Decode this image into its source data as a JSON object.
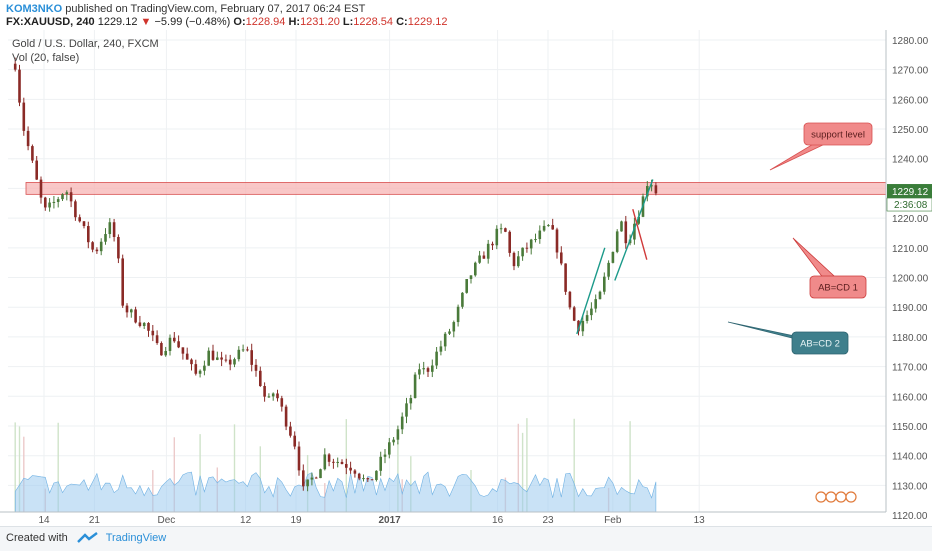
{
  "header": {
    "author": "KOM3NKO",
    "published_text": "published on TradingView.com, February 07, 2017 06:24 EST",
    "symbol": "FX:XAUUSD, 240",
    "last": "1229.12",
    "change_arrow": "▼",
    "change": "−5.99 (−0.48%)",
    "o_label": "O:",
    "o_value": "1228.94",
    "h_label": "H:",
    "h_value": "1231.20",
    "l_label": "L:",
    "l_value": "1228.54",
    "c_label": "C:",
    "c_value": "1229.12"
  },
  "legend": {
    "series_title": "Gold / U.S. Dollar, 240, FXCM",
    "volume_title": "Vol (20, false)"
  },
  "footer": {
    "created_with": "Created with",
    "brand": "TradingView"
  },
  "colors": {
    "up_candle": "#4a7a3a",
    "down_candle": "#8a2a26",
    "volume_area": "#9ccbee",
    "zone_fill": "#f7b4b4",
    "zone_stroke": "#d85050",
    "callout_red": "#f08a8a",
    "callout_teal": "#3f7f8c",
    "price_badge": "#3a7d3a",
    "link_blue": "#2a8fd8"
  },
  "chart_data": {
    "type": "candlestick",
    "title": "Gold / U.S. Dollar, 240, FXCM",
    "ylim": [
      1117,
      1282
    ],
    "y_ticks": [
      "1120.00",
      "1130.00",
      "1140.00",
      "1150.00",
      "1160.00",
      "1170.00",
      "1180.00",
      "1190.00",
      "1200.00",
      "1210.00",
      "1220.00",
      "1230.00",
      "1240.00",
      "1250.00",
      "1260.00",
      "1270.00",
      "1280.00"
    ],
    "x_tick_labels": [
      "14",
      "21",
      "Dec",
      "12",
      "19",
      "2017",
      "16",
      "23",
      "Feb",
      "13"
    ],
    "last_price_label": "1229.12",
    "countdown_label": "2:36:08",
    "price_path": [
      {
        "date": "2016-11-10",
        "close": 1272
      },
      {
        "date": "2016-11-11",
        "close": 1252
      },
      {
        "date": "2016-11-14",
        "close": 1222
      },
      {
        "date": "2016-11-15",
        "close": 1224
      },
      {
        "date": "2016-11-17",
        "close": 1230
      },
      {
        "date": "2016-11-18",
        "close": 1224
      },
      {
        "date": "2016-11-21",
        "close": 1208
      },
      {
        "date": "2016-11-23",
        "close": 1218
      },
      {
        "date": "2016-11-24",
        "close": 1212
      },
      {
        "date": "2016-11-25",
        "close": 1190
      },
      {
        "date": "2016-11-28",
        "close": 1184
      },
      {
        "date": "2016-11-30",
        "close": 1175
      },
      {
        "date": "2016-12-02",
        "close": 1180
      },
      {
        "date": "2016-12-05",
        "close": 1167
      },
      {
        "date": "2016-12-07",
        "close": 1175
      },
      {
        "date": "2016-12-09",
        "close": 1170
      },
      {
        "date": "2016-12-12",
        "close": 1176
      },
      {
        "date": "2016-12-14",
        "close": 1165
      },
      {
        "date": "2016-12-15",
        "close": 1157
      },
      {
        "date": "2016-12-16",
        "close": 1162
      },
      {
        "date": "2016-12-19",
        "close": 1143
      },
      {
        "date": "2016-12-20",
        "close": 1128
      },
      {
        "date": "2016-12-22",
        "close": 1135
      },
      {
        "date": "2016-12-23",
        "close": 1140
      },
      {
        "date": "2016-12-27",
        "close": 1136
      },
      {
        "date": "2016-12-29",
        "close": 1130
      },
      {
        "date": "2017-01-02",
        "close": 1148
      },
      {
        "date": "2017-01-04",
        "close": 1160
      },
      {
        "date": "2017-01-05",
        "close": 1170
      },
      {
        "date": "2017-01-06",
        "close": 1168
      },
      {
        "date": "2017-01-10",
        "close": 1185
      },
      {
        "date": "2017-01-12",
        "close": 1200
      },
      {
        "date": "2017-01-16",
        "close": 1215
      },
      {
        "date": "2017-01-17",
        "close": 1216
      },
      {
        "date": "2017-01-18",
        "close": 1204
      },
      {
        "date": "2017-01-20",
        "close": 1210
      },
      {
        "date": "2017-01-23",
        "close": 1217
      },
      {
        "date": "2017-01-24",
        "close": 1213
      },
      {
        "date": "2017-01-26",
        "close": 1190
      },
      {
        "date": "2017-01-27",
        "close": 1183
      },
      {
        "date": "2017-01-30",
        "close": 1192
      },
      {
        "date": "2017-02-01",
        "close": 1210
      },
      {
        "date": "2017-02-02",
        "close": 1220
      },
      {
        "date": "2017-02-03",
        "close": 1212
      },
      {
        "date": "2017-02-05",
        "close": 1225
      },
      {
        "date": "2017-02-06",
        "close": 1234
      },
      {
        "date": "2017-02-07",
        "close": 1229
      }
    ],
    "support_zone": [
      1228,
      1232
    ],
    "annotations": [
      {
        "text": "support level",
        "style": "callout-red"
      },
      {
        "text": "AB=CD 1",
        "style": "callout-red"
      },
      {
        "text": "AB=CD 2",
        "style": "callout-teal"
      }
    ],
    "grid": true,
    "volume_pane": true
  }
}
